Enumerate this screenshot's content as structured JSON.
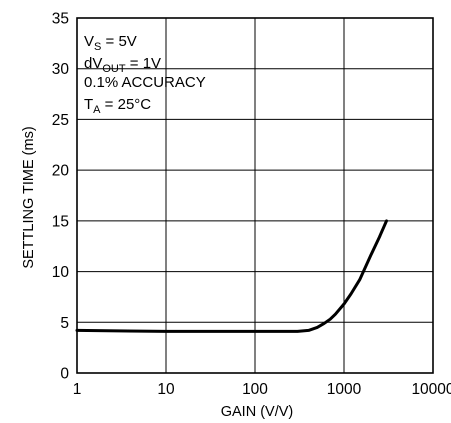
{
  "chart_data": {
    "type": "line",
    "title": "",
    "xlabel": "GAIN (V/V)",
    "ylabel": "SETTLING TIME (ms)",
    "x_scale": "log",
    "xlim": [
      1,
      10000
    ],
    "ylim": [
      0,
      35
    ],
    "x_ticks": [
      "1",
      "10",
      "100",
      "1000",
      "10000"
    ],
    "y_ticks": [
      "0",
      "5",
      "10",
      "15",
      "20",
      "25",
      "30",
      "35"
    ],
    "grid": true,
    "annotations": [
      {
        "main": "V",
        "sub": "S",
        "rest": " = 5V"
      },
      {
        "main": "dV",
        "sub": "OUT",
        "rest": " = 1V"
      },
      {
        "main": "0.1% ACCURACY",
        "sub": "",
        "rest": ""
      },
      {
        "main": "T",
        "sub": "A",
        "rest": " = 25°C"
      }
    ],
    "series": [
      {
        "x": [
          1,
          10,
          100,
          300,
          400,
          500,
          600,
          700,
          800,
          1000,
          1200,
          1500,
          2000,
          2500,
          3000
        ],
        "y": [
          4.2,
          4.1,
          4.1,
          4.1,
          4.2,
          4.5,
          4.9,
          5.3,
          5.8,
          6.8,
          7.8,
          9.2,
          11.6,
          13.4,
          15.0
        ]
      }
    ]
  }
}
